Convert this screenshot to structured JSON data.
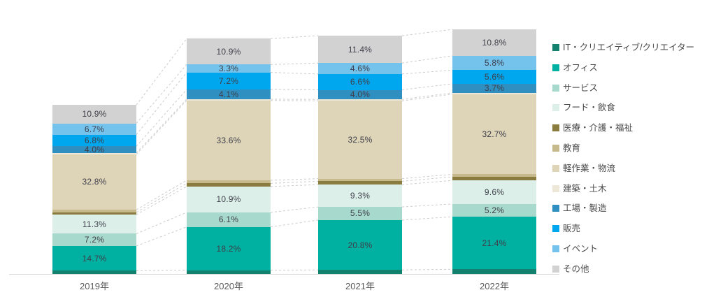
{
  "chart_data": {
    "type": "bar",
    "variant": "stacked-column-variable-width-height",
    "title": "",
    "xlabel": "",
    "ylabel": "",
    "value_suffix": "%",
    "grid": false,
    "legend_position": "right",
    "categories": [
      "2019年",
      "2020年",
      "2021年",
      "2022年"
    ],
    "bar_relative_heights": [
      0.691,
      0.962,
      0.974,
      1.0
    ],
    "series": [
      {
        "name": "IT・クリエイティブ/クリエイター",
        "color": "#12826e",
        "values": [
          1.9,
          1.6,
          1.7,
          1.9
        ],
        "labeled": false
      },
      {
        "name": "オフィス",
        "color": "#00b0a0",
        "values": [
          14.7,
          18.2,
          20.8,
          21.4
        ],
        "labeled": true
      },
      {
        "name": "サービス",
        "color": "#a7dacc",
        "values": [
          7.2,
          6.1,
          5.5,
          5.2
        ],
        "labeled": true
      },
      {
        "name": "フード・飲食",
        "color": "#dcf0e9",
        "values": [
          11.3,
          10.9,
          9.3,
          9.6
        ],
        "labeled": true
      },
      {
        "name": "医療・介護・福祉",
        "color": "#8a7c3e",
        "values": [
          1.4,
          1.3,
          1.4,
          1.5
        ],
        "labeled": false
      },
      {
        "name": "教育",
        "color": "#c6ba8d",
        "values": [
          1.5,
          1.3,
          1.1,
          1.0
        ],
        "labeled": false
      },
      {
        "name": "軽作業・物流",
        "color": "#ded5b8",
        "values": [
          32.8,
          33.6,
          32.5,
          32.7
        ],
        "labeled": true
      },
      {
        "name": "建築・土木",
        "color": "#ece7d6",
        "values": [
          0.8,
          0.5,
          0.6,
          0.5
        ],
        "labeled": false
      },
      {
        "name": "工場・製造",
        "color": "#2e8fc0",
        "values": [
          4.0,
          4.1,
          4.0,
          3.7
        ],
        "labeled": true
      },
      {
        "name": "販売",
        "color": "#00a7ef",
        "values": [
          6.8,
          7.2,
          6.6,
          5.6
        ],
        "labeled": true
      },
      {
        "name": "イベント",
        "color": "#74c3ec",
        "values": [
          6.7,
          3.3,
          4.6,
          5.8
        ],
        "labeled": true
      },
      {
        "name": "その他",
        "color": "#d2d2d2",
        "values": [
          10.9,
          10.9,
          11.4,
          10.8
        ],
        "labeled": true
      }
    ],
    "styles": {
      "label_color": "#3f3f4a",
      "axis_line_color": "#d9d9d9",
      "connector_color": "#cccccc",
      "x_label_color": "#595959",
      "legend_text_color": "#4a4a4a"
    }
  }
}
